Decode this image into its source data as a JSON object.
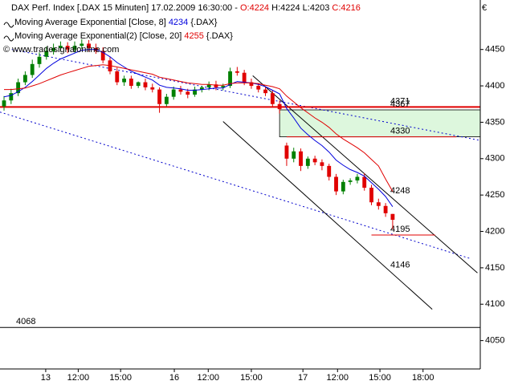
{
  "chart_data": {
    "type": "candlestick",
    "header": {
      "instrument": "DAX Perf. Index [.DAX  15 Minuten] 17.02.2009 16:30:00 -",
      "quote": [
        {
          "text": "O:4224",
          "color": "#e00000"
        },
        {
          "text": "H:4224",
          "color": "#000000"
        },
        {
          "text": "L:4203",
          "color": "#000000"
        },
        {
          "text": "C:4216",
          "color": "#e00000"
        }
      ],
      "copyright": "© www.tradesignalonline.com",
      "currency": "€"
    },
    "ylim": [
      4011,
      4518
    ],
    "yticks": [
      4050,
      4100,
      4150,
      4200,
      4250,
      4300,
      4350,
      4400,
      4450
    ],
    "xlim": [
      -0.57,
      67.4
    ],
    "xticks": [
      {
        "value": 5.9,
        "label": "13"
      },
      {
        "value": 10.5,
        "label": "12:00"
      },
      {
        "value": 16.5,
        "label": "15:00"
      },
      {
        "value": 24.1,
        "label": "16"
      },
      {
        "value": 28.9,
        "label": "12:00"
      },
      {
        "value": 35,
        "label": "15:00"
      },
      {
        "value": 42.3,
        "label": "17"
      },
      {
        "value": 47.2,
        "label": "12:00"
      },
      {
        "value": 53.2,
        "label": "15:00"
      },
      {
        "value": 59.3,
        "label": "18:00"
      }
    ],
    "up_color": "#008000",
    "down_color": "#e00000",
    "open": [
      4372,
      4380,
      4390,
      4405,
      4415,
      4430,
      4440,
      4448,
      4452,
      4455,
      4450,
      4455,
      4458,
      4452,
      4448,
      4435,
      4420,
      4405,
      4410,
      4400,
      4405,
      4398,
      4395,
      4375,
      4385,
      4395,
      4392,
      4388,
      4395,
      4398,
      4402,
      4398,
      4400,
      4420,
      4418,
      4405,
      4400,
      4395,
      4390,
      4375,
      4318,
      4300,
      4310,
      4290,
      4300,
      4295,
      4290,
      4275,
      4255,
      4268,
      4270,
      4275,
      4260,
      4240,
      4235,
      4224
    ],
    "high": [
      4386,
      4396,
      4410,
      4420,
      4436,
      4446,
      4454,
      4458,
      4461,
      4460,
      4461,
      4464,
      4463,
      4458,
      4453,
      4440,
      4425,
      4414,
      4414,
      4406,
      4410,
      4403,
      4398,
      4389,
      4399,
      4400,
      4396,
      4399,
      4400,
      4406,
      4407,
      4403,
      4425,
      4426,
      4422,
      4410,
      4404,
      4399,
      4394,
      4380,
      4322,
      4315,
      4314,
      4303,
      4304,
      4299,
      4293,
      4279,
      4271,
      4273,
      4279,
      4280,
      4264,
      4245,
      4239,
      4224
    ],
    "low": [
      4366,
      4375,
      4386,
      4401,
      4411,
      4425,
      4436,
      4443,
      4447,
      4445,
      4446,
      4451,
      4447,
      4444,
      4431,
      4416,
      4401,
      4400,
      4396,
      4397,
      4394,
      4391,
      4363,
      4372,
      4381,
      4388,
      4383,
      4385,
      4391,
      4394,
      4394,
      4394,
      4397,
      4414,
      4401,
      4396,
      4391,
      4386,
      4371,
      4362,
      4290,
      4295,
      4283,
      4286,
      4291,
      4284,
      4270,
      4250,
      4251,
      4264,
      4266,
      4256,
      4236,
      4230,
      4220,
      4203
    ],
    "close": [
      4380,
      4390,
      4405,
      4415,
      4430,
      4440,
      4448,
      4452,
      4455,
      4450,
      4455,
      4458,
      4452,
      4448,
      4435,
      4420,
      4405,
      4410,
      4400,
      4405,
      4398,
      4395,
      4375,
      4385,
      4395,
      4392,
      4388,
      4395,
      4398,
      4402,
      4398,
      4400,
      4420,
      4418,
      4405,
      4400,
      4395,
      4390,
      4375,
      4368,
      4300,
      4310,
      4290,
      4300,
      4295,
      4290,
      4275,
      4255,
      4268,
      4270,
      4275,
      4260,
      4240,
      4235,
      4225,
      4216
    ],
    "series": [
      {
        "name": "Moving Average Exponential [Close, 8]",
        "last": 4234,
        "suffix": "{.DAX}",
        "color": "#0000dd",
        "values": [
          4385,
          4387,
          4392,
          4398,
          4406,
          4415,
          4424,
          4431,
          4437,
          4441,
          4445,
          4449,
          4450,
          4450,
          4446,
          4440,
          4432,
          4426,
          4420,
          4416,
          4412,
          4408,
          4401,
          4398,
          4397,
          4396,
          4394,
          4394,
          4395,
          4396,
          4397,
          4397,
          4402,
          4406,
          4405,
          4404,
          4402,
          4399,
          4394,
          4389,
          4369,
          4356,
          4342,
          4333,
          4325,
          4318,
          4309,
          4298,
          4291,
          4285,
          4281,
          4276,
          4267,
          4258,
          4248,
          4234
        ]
      },
      {
        "name": "Moving Average Exponential(2) [Close, 20]",
        "last": 4255,
        "suffix": "{.DAX}",
        "color": "#e00000",
        "values": [
          4395,
          4395,
          4396,
          4397,
          4400,
          4403,
          4407,
          4411,
          4415,
          4418,
          4421,
          4424,
          4427,
          4428,
          4429,
          4428,
          4426,
          4424,
          4422,
          4420,
          4418,
          4416,
          4412,
          4410,
          4408,
          4406,
          4404,
          4403,
          4402,
          4402,
          4401,
          4401,
          4403,
          4404,
          4404,
          4404,
          4403,
          4401,
          4399,
          4396,
          4386,
          4378,
          4370,
          4363,
          4356,
          4350,
          4343,
          4334,
          4327,
          4321,
          4315,
          4308,
          4299,
          4290,
          4272,
          4255
        ]
      }
    ],
    "zone": {
      "from": 39,
      "to": 67.4,
      "low": 4330,
      "high": 4367,
      "color": "#ddf7dd"
    },
    "levels": [
      {
        "value": 4371,
        "color": "#e00000",
        "span": [
          -0.57,
          67.4
        ],
        "width": 2
      },
      {
        "value": 4367,
        "color": "#000000"
      },
      {
        "value": 4330,
        "color": "#e00000",
        "span": [
          40,
          64
        ],
        "width": 1
      },
      {
        "value": 4248,
        "color": "#000000"
      },
      {
        "value": 4195,
        "color": "#e00000",
        "span": [
          52,
          61
        ],
        "width": 1
      },
      {
        "value": 4146,
        "color": "#000000"
      },
      {
        "value": 4068,
        "color": "#000000",
        "span": [
          -0.57,
          67.4
        ],
        "width": 1
      }
    ],
    "trendlines": [
      {
        "color": "#0000cc",
        "dashed": true,
        "points": [
          [
            1.1,
            4450
          ],
          [
            67.4,
            4325
          ]
        ]
      },
      {
        "color": "#0000cc",
        "dashed": true,
        "points": [
          [
            -0.57,
            4364
          ],
          [
            65.9,
            4163
          ]
        ]
      },
      {
        "color": "#000000",
        "dashed": false,
        "points": [
          [
            35.2,
            4414
          ],
          [
            67,
            4143
          ]
        ]
      },
      {
        "color": "#000000",
        "dashed": false,
        "points": [
          [
            31,
            4351
          ],
          [
            60.6,
            4093
          ]
        ]
      }
    ]
  }
}
